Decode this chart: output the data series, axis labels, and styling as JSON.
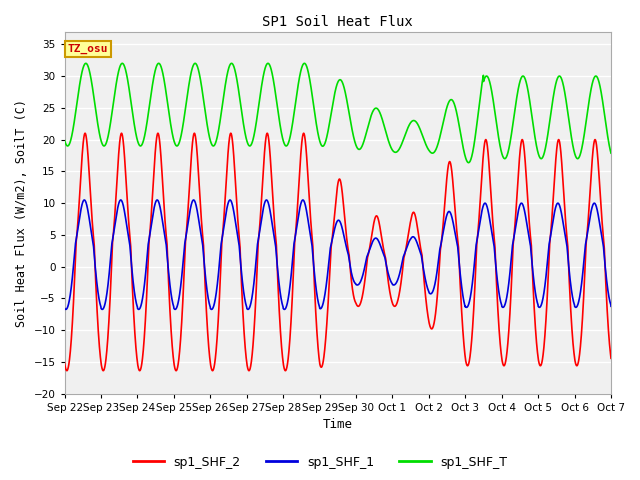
{
  "title": "SP1 Soil Heat Flux",
  "xlabel": "Time",
  "ylabel": "Soil Heat Flux (W/m2), SoilT (C)",
  "ylim": [
    -20,
    37
  ],
  "yticks": [
    -20,
    -15,
    -10,
    -5,
    0,
    5,
    10,
    15,
    20,
    25,
    30,
    35
  ],
  "fig_bg": "#ffffff",
  "plot_bg": "#f0f0f0",
  "grid_color": "#ffffff",
  "line_colors": {
    "sp1_SHF_2": "#ff0000",
    "sp1_SHF_1": "#0000dd",
    "sp1_SHF_T": "#00dd00"
  },
  "line_width": 1.2,
  "tz_label": "TZ_osu",
  "tz_fg": "#cc0000",
  "tz_bg": "#ffff99",
  "tz_border": "#cc9900",
  "legend_labels": [
    "sp1_SHF_2",
    "sp1_SHF_1",
    "sp1_SHF_T"
  ],
  "x_tick_labels": [
    "Sep 22",
    "Sep 23",
    "Sep 24",
    "Sep 25",
    "Sep 26",
    "Sep 27",
    "Sep 28",
    "Sep 29",
    "Sep 30",
    "Oct 1",
    "Oct 2",
    "Oct 3",
    "Oct 4",
    "Oct 5",
    "Oct 6",
    "Oct 7"
  ],
  "x_tick_positions": [
    0,
    1,
    2,
    3,
    4,
    5,
    6,
    7,
    8,
    9,
    10,
    11,
    12,
    13,
    14,
    15
  ]
}
